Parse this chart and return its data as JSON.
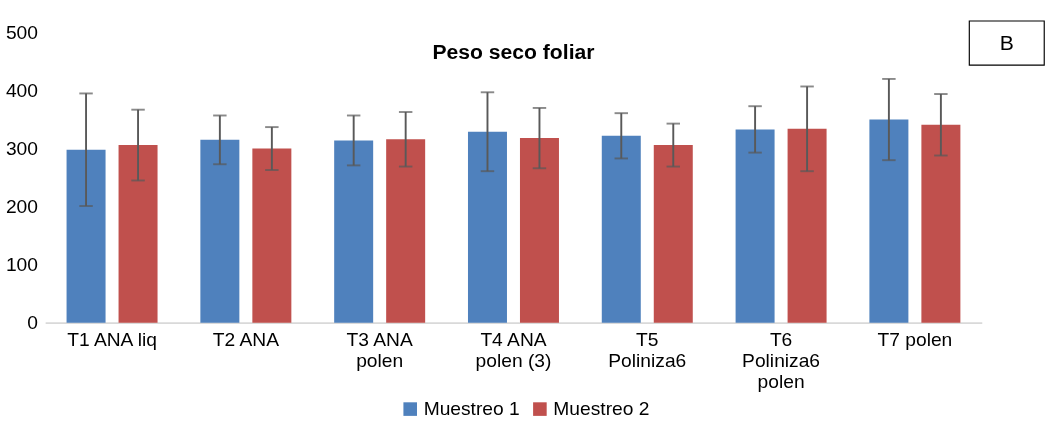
{
  "chart_data": {
    "type": "bar",
    "title": "Peso seco foliar",
    "categories": [
      "T1 ANA liq",
      "T2 ANA",
      "T3 ANA polen",
      "T4 ANA polen (3)",
      "T5 Poliniza6",
      "T6 Poliniza6 polen",
      "T7 polen"
    ],
    "series": [
      {
        "name": "Muestreo 1",
        "color": "#4f81bd",
        "values": [
          298,
          315,
          314,
          329,
          322,
          333,
          350
        ],
        "errors": [
          97,
          42,
          43,
          68,
          39,
          40,
          70
        ]
      },
      {
        "name": "Muestreo 2",
        "color": "#c0504d",
        "values": [
          306,
          300,
          316,
          318,
          306,
          334,
          341
        ],
        "errors": [
          61,
          37,
          47,
          52,
          37,
          73,
          53
        ]
      }
    ],
    "ylim": [
      0,
      500
    ],
    "yticks": [
      0,
      100,
      200,
      300,
      400,
      500
    ],
    "grid": false,
    "legend": "bottom",
    "annotations": [
      "B"
    ]
  }
}
